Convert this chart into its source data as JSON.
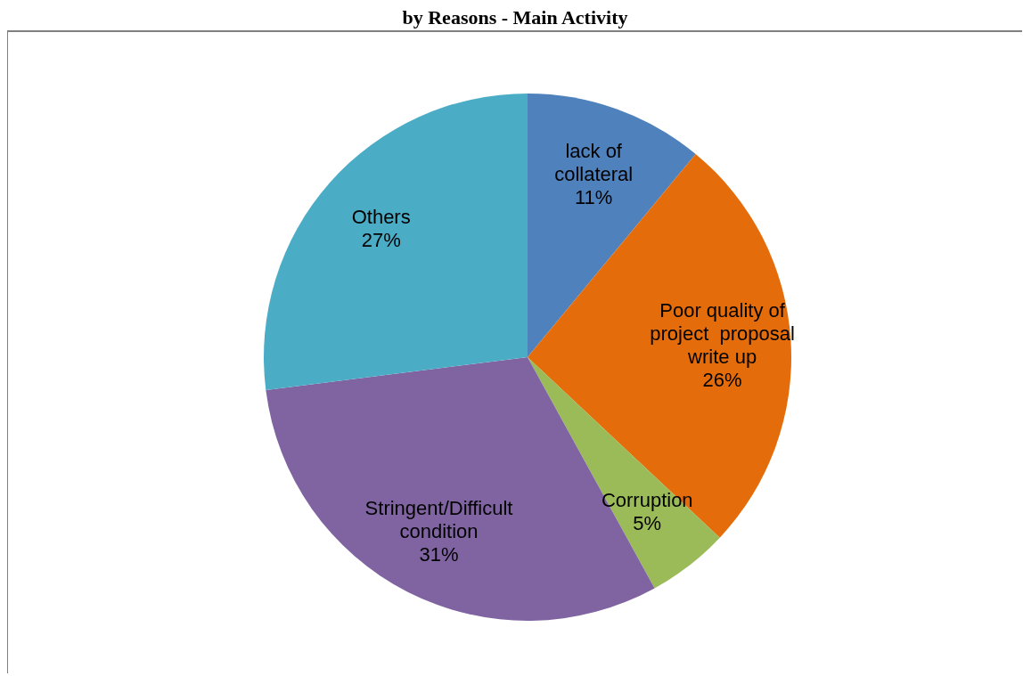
{
  "chart_data": {
    "type": "pie",
    "title": "by Reasons - Main Activity",
    "categories": [
      "lack of\ncollateral",
      "Poor quality of\nproject  proposal\nwrite up",
      "Corruption",
      "Stringent/Difficult\ncondition",
      "Others"
    ],
    "values": [
      11,
      26,
      5,
      31,
      27
    ],
    "value_labels": [
      "11%",
      "26%",
      "5%",
      "31%",
      "27%"
    ],
    "colors": [
      "#4f81bd",
      "#e46c0a",
      "#9bbb59",
      "#8064a2",
      "#4bacc6"
    ],
    "legend": false
  }
}
